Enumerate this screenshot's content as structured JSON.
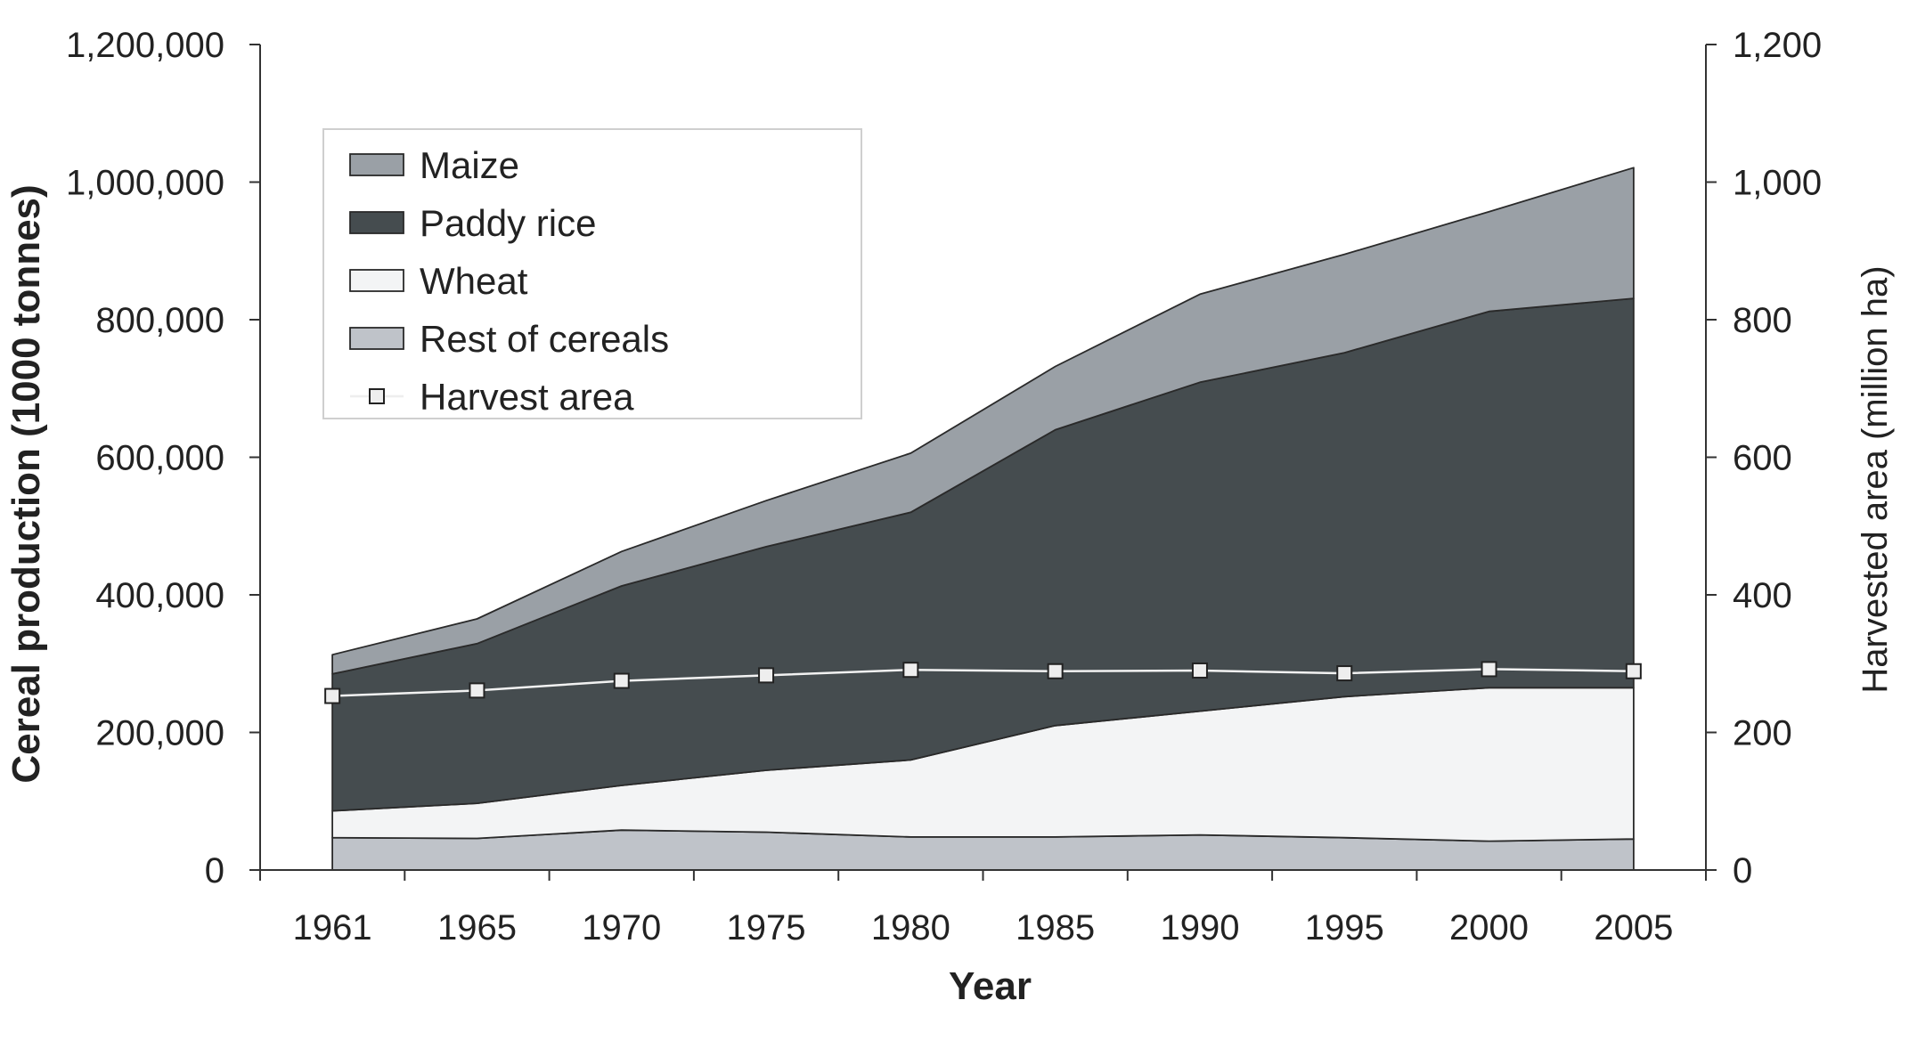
{
  "chart_data": {
    "type": "area",
    "stacked": true,
    "xlabel": "Year",
    "ylabel": "Cereal production (1000 tonnes)",
    "y2label": "Harvested area (million ha)",
    "categories": [
      "1961",
      "1965",
      "1970",
      "1975",
      "1980",
      "1985",
      "1990",
      "1995",
      "2000",
      "2005"
    ],
    "ylim": [
      0,
      1200000
    ],
    "y2lim": [
      0,
      1200
    ],
    "y_ticks": [
      "0",
      "200,000",
      "400,000",
      "600,000",
      "800,000",
      "1,000,000",
      "1,200,000"
    ],
    "y2_ticks": [
      "0",
      "200",
      "400",
      "600",
      "800",
      "1,000",
      "1,200"
    ],
    "series": [
      {
        "name": "Rest of cereals",
        "axis": "left",
        "color": "#bfc3c9",
        "values": [
          47000,
          46000,
          58000,
          55000,
          48000,
          48000,
          51000,
          47000,
          42000,
          45000
        ]
      },
      {
        "name": "Wheat",
        "axis": "left",
        "color": "#f3f4f5",
        "values": [
          39000,
          51000,
          65000,
          90000,
          112000,
          162000,
          180000,
          205000,
          223000,
          220000
        ]
      },
      {
        "name": "Paddy rice",
        "axis": "left",
        "color": "#454c4f",
        "values": [
          199000,
          232000,
          290000,
          325000,
          360000,
          430000,
          478000,
          500000,
          547000,
          566000
        ]
      },
      {
        "name": "Maize",
        "axis": "left",
        "color": "#9aa0a6",
        "values": [
          28000,
          36000,
          50000,
          67000,
          86000,
          92000,
          128000,
          143000,
          145000,
          190000
        ]
      },
      {
        "name": "Harvest area",
        "axis": "right",
        "type": "line",
        "color": "#f0f0f0",
        "values": [
          253,
          261,
          275,
          283,
          291,
          289,
          290,
          286,
          292,
          289
        ]
      }
    ],
    "legend": {
      "position": "top-left",
      "entries": [
        "Maize",
        "Paddy rice",
        "Wheat",
        "Rest of cereals",
        "Harvest area"
      ]
    },
    "grid": false
  }
}
